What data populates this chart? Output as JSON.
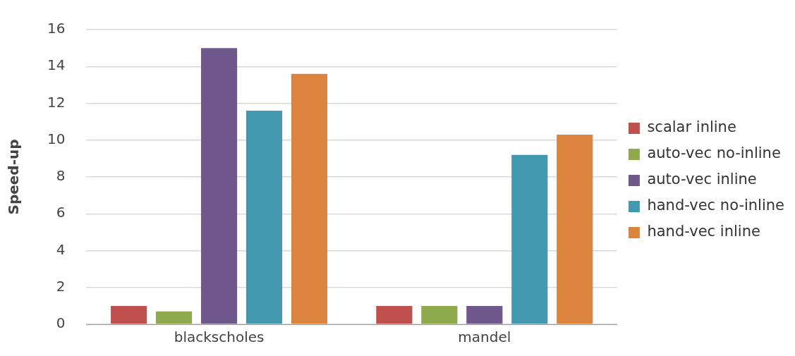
{
  "chart_data": {
    "type": "bar",
    "ylabel": "Speed-up",
    "categories": [
      "blackscholes",
      "mandel"
    ],
    "series": [
      {
        "name": "scalar inline",
        "color": "#c0504d",
        "values": [
          1.0,
          1.0
        ]
      },
      {
        "name": "auto-vec no-inline",
        "color": "#8faa4c",
        "values": [
          0.7,
          1.0
        ]
      },
      {
        "name": "auto-vec inline",
        "color": "#70578c",
        "values": [
          15.0,
          1.0
        ]
      },
      {
        "name": "hand-vec no-inline",
        "color": "#4198af",
        "values": [
          11.6,
          9.2
        ]
      },
      {
        "name": "hand-vec inline",
        "color": "#db843d",
        "values": [
          13.6,
          10.3
        ]
      }
    ],
    "ylim": [
      0,
      16
    ],
    "yticks": [
      0,
      2,
      4,
      6,
      8,
      10,
      12,
      14,
      16
    ],
    "grid": "y",
    "legend": "right"
  }
}
